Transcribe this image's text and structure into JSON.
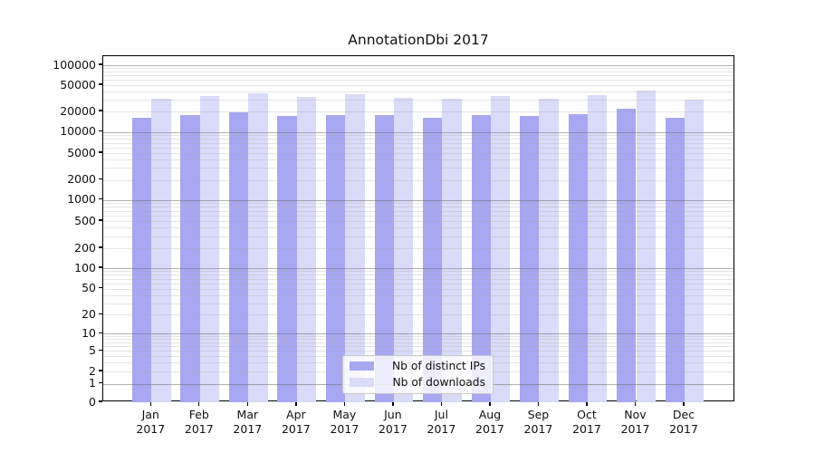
{
  "title": "AnnotationDbi 2017",
  "chart_data": {
    "type": "bar",
    "title": "AnnotationDbi 2017",
    "categories": [
      "Jan",
      "Feb",
      "Mar",
      "Apr",
      "May",
      "Jun",
      "Jul",
      "Aug",
      "Sep",
      "Oct",
      "Nov",
      "Dec"
    ],
    "category_year": "2017",
    "series": [
      {
        "name": "Nb of distinct IPs",
        "color": "#a7a7f2",
        "values": [
          16300,
          17900,
          19400,
          16900,
          17900,
          17900,
          16300,
          17500,
          16900,
          18300,
          21700,
          16000
        ]
      },
      {
        "name": "Nb of downloads",
        "color": "#dadaf9",
        "values": [
          31600,
          34100,
          38200,
          33400,
          36900,
          32600,
          31600,
          34100,
          30700,
          34800,
          41900,
          29700
        ]
      }
    ],
    "yscale": "symlog",
    "y_ticks": [
      100000,
      50000,
      20000,
      10000,
      5000,
      2000,
      1000,
      500,
      200,
      100,
      50,
      20,
      10,
      5,
      2,
      1,
      0
    ],
    "ylim": [
      0,
      140000
    ],
    "xlabel": "",
    "ylabel": "",
    "grid": true,
    "legend_position": "lower center"
  }
}
